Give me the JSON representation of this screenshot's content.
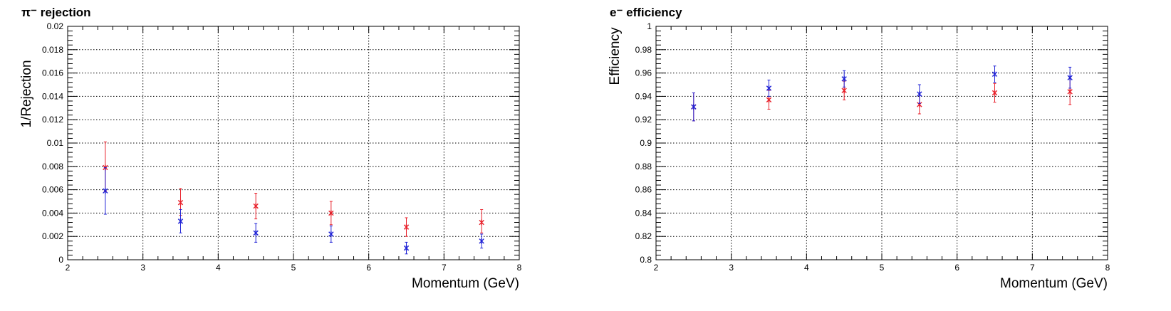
{
  "colors": {
    "series_1": "#e8202a",
    "series_2": "#1f22d6",
    "axis": "#000000"
  },
  "chart_data": [
    {
      "type": "scatter",
      "title": "π⁻ rejection",
      "xlabel": "Momentum (GeV)",
      "ylabel": "1/Rejection",
      "xlim": [
        2,
        8
      ],
      "ylim": [
        0,
        0.02
      ],
      "grid": true,
      "x_ticks": [
        "2",
        "3",
        "4",
        "5",
        "6",
        "7",
        "8"
      ],
      "y_ticks": [
        "0",
        "0.002",
        "0.004",
        "0.006",
        "0.008",
        "0.01",
        "0.012",
        "0.014",
        "0.016",
        "0.018",
        "0.02"
      ],
      "x": [
        2.5,
        3.5,
        4.5,
        5.5,
        6.5,
        7.5
      ],
      "series": [
        {
          "color": "#e8202a",
          "values": [
            0.0079,
            0.0049,
            0.0046,
            0.004,
            0.0028,
            0.0032
          ],
          "err_lo": [
            0.002,
            0.0011,
            0.0011,
            0.001,
            0.0008,
            0.0009
          ],
          "err_hi": [
            0.0022,
            0.0012,
            0.0011,
            0.001,
            0.0008,
            0.0011
          ]
        },
        {
          "color": "#1f22d6",
          "values": [
            0.0059,
            0.0033,
            0.0023,
            0.0022,
            0.001,
            0.0016
          ],
          "err_lo": [
            0.002,
            0.001,
            0.0008,
            0.0007,
            0.0005,
            0.0006
          ],
          "err_hi": [
            0.002,
            0.001,
            0.0008,
            0.0007,
            0.0005,
            0.0006
          ]
        }
      ]
    },
    {
      "type": "scatter",
      "title": "e⁻ efficiency",
      "xlabel": "Momentum (GeV)",
      "ylabel": "Efficiency",
      "xlim": [
        2,
        8
      ],
      "ylim": [
        0.8,
        1
      ],
      "grid": true,
      "x_ticks": [
        "2",
        "3",
        "4",
        "5",
        "6",
        "7",
        "8"
      ],
      "y_ticks": [
        "0.8",
        "0.82",
        "0.84",
        "0.86",
        "0.88",
        "0.9",
        "0.92",
        "0.94",
        "0.96",
        "0.98",
        "1"
      ],
      "x": [
        2.5,
        3.5,
        4.5,
        5.5,
        6.5,
        7.5
      ],
      "series": [
        {
          "color": "#e8202a",
          "values": [
            0.931,
            0.937,
            0.945,
            0.933,
            0.943,
            0.944
          ],
          "err_lo": [
            0.012,
            0.008,
            0.008,
            0.008,
            0.008,
            0.011
          ],
          "err_hi": [
            0.012,
            0.008,
            0.008,
            0.008,
            0.008,
            0.011
          ]
        },
        {
          "color": "#1f22d6",
          "values": [
            0.931,
            0.947,
            0.955,
            0.942,
            0.959,
            0.956
          ],
          "err_lo": [
            0.012,
            0.007,
            0.007,
            0.008,
            0.007,
            0.009
          ],
          "err_hi": [
            0.012,
            0.007,
            0.007,
            0.008,
            0.007,
            0.009
          ]
        }
      ]
    }
  ]
}
